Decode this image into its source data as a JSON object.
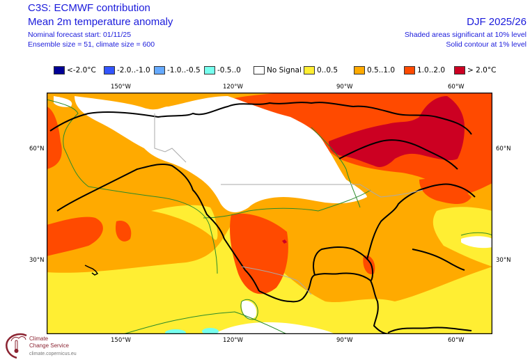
{
  "header": {
    "title": "C3S: ECMWF contribution",
    "variable": "Mean 2m temperature anomaly",
    "forecast_start": "Nominal forecast start: 01/11/25",
    "ensemble": "Ensemble size = 51, climate size = 600",
    "season": "DJF 2025/26",
    "significance_shaded": "Shaded areas significant at 10% level",
    "significance_contour": "Solid contour at 1% level"
  },
  "legend": [
    {
      "label": "<-2.0°C",
      "color": "#000096"
    },
    {
      "label": "-2.0..-1.0",
      "color": "#3355ff"
    },
    {
      "label": "-1.0..-0.5",
      "color": "#66aaff"
    },
    {
      "label": "-0.5..0",
      "color": "#77ffee"
    },
    {
      "label": "No Signal",
      "color": "#ffffff"
    },
    {
      "label": "0..0.5",
      "color": "#ffee33"
    },
    {
      "label": "0.5..1.0",
      "color": "#ffaa00"
    },
    {
      "label": "1.0..2.0",
      "color": "#ff4a00"
    },
    {
      "label": "> 2.0°C",
      "color": "#cc0022"
    }
  ],
  "axes": {
    "lon_labels": [
      "150°W",
      "120°W",
      "90°W",
      "60°W"
    ],
    "lat_labels": [
      "60°N",
      "30°N"
    ]
  },
  "logo": {
    "line1": "Climate",
    "line2": "Change Service",
    "url": "climate.copernicus.eu"
  },
  "colors": {
    "title_text": "#1a1adb",
    "logo_accent": "#8b2331",
    "coastline": "#000000",
    "border": "#aaaaaa",
    "contour": "#2a8a2a"
  }
}
